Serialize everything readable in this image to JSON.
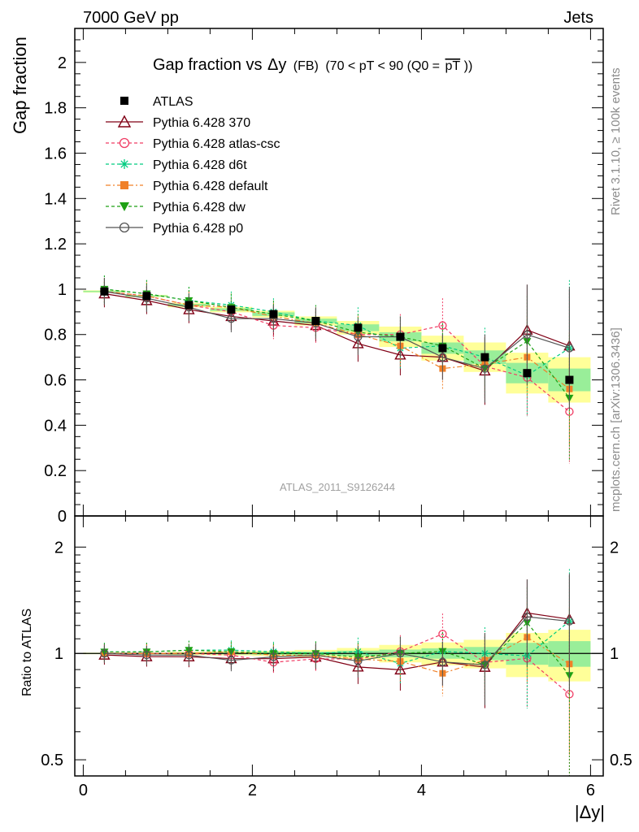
{
  "header": {
    "left": "7000 GeV pp",
    "right": "Jets"
  },
  "side_labels": {
    "rivet": "Rivet 3.1.10, ≥ 100k events",
    "mcplots": "mcplots.cern.ch [arXiv:1306.3436]"
  },
  "watermark": "ATLAS_2011_S9126244",
  "chart_data": {
    "type": "scatter",
    "title": {
      "main": "Gap fraction vs",
      "delta": "Δy",
      "fb": "(FB)",
      "range_pre": "(70 < pT <  90 (Q0 =",
      "range_pt": "pT",
      "range_post": "))"
    },
    "ylabel": "Gap fraction",
    "ratio_ylabel": "Ratio to ATLAS",
    "xlabel": "|Δy|",
    "xlim": [
      -0.1,
      6.15
    ],
    "ylim": [
      0,
      2.15
    ],
    "ratio_ylim": [
      0.45,
      2.45
    ],
    "ratio_log_scale": true,
    "x_ticks": [
      "0",
      "2",
      "4",
      "6"
    ],
    "y_ticks": [
      "0",
      "0.2",
      "0.4",
      "0.6",
      "0.8",
      "1",
      "1.2",
      "1.4",
      "1.6",
      "1.8",
      "2"
    ],
    "ratio_ticks": [
      "0.5",
      "1",
      "2"
    ],
    "x": [
      0.25,
      0.75,
      1.25,
      1.75,
      2.25,
      2.75,
      3.25,
      3.75,
      4.25,
      4.75,
      5.25,
      5.75
    ],
    "data_series": {
      "name": "ATLAS",
      "color": "#000000",
      "values": [
        0.99,
        0.97,
        0.93,
        0.91,
        0.89,
        0.86,
        0.83,
        0.79,
        0.74,
        0.7,
        0.63,
        0.6
      ],
      "band_total": [
        0.005,
        0.005,
        0.01,
        0.012,
        0.015,
        0.02,
        0.03,
        0.045,
        0.055,
        0.065,
        0.09,
        0.1
      ],
      "band_stat": [
        0.003,
        0.003,
        0.005,
        0.006,
        0.008,
        0.01,
        0.015,
        0.02,
        0.025,
        0.03,
        0.045,
        0.05
      ]
    },
    "series": [
      {
        "name": "Pythia 6.428 370",
        "color": "#800015",
        "marker": "triangle-open",
        "dash": "",
        "values": [
          0.98,
          0.95,
          0.91,
          0.88,
          0.86,
          0.84,
          0.76,
          0.71,
          0.7,
          0.64,
          0.82,
          0.75
        ],
        "err": [
          0.06,
          0.06,
          0.06,
          0.06,
          0.07,
          0.07,
          0.08,
          0.09,
          0.1,
          0.15,
          0.2,
          0.25
        ]
      },
      {
        "name": "Pythia 6.428 atlas-csc",
        "color": "#f03c64",
        "marker": "circle-open",
        "dash": "4,3",
        "values": [
          0.99,
          0.97,
          0.93,
          0.9,
          0.84,
          0.83,
          0.8,
          0.8,
          0.84,
          0.66,
          0.61,
          0.46
        ],
        "err": [
          0.06,
          0.06,
          0.06,
          0.06,
          0.06,
          0.07,
          0.08,
          0.09,
          0.12,
          0.14,
          0.17,
          0.23
        ]
      },
      {
        "name": "Pythia 6.428 d6t",
        "color": "#00cc80",
        "marker": "star",
        "dash": "4,3",
        "values": [
          1.0,
          0.98,
          0.95,
          0.93,
          0.9,
          0.86,
          0.84,
          0.74,
          0.75,
          0.7,
          0.62,
          0.74
        ],
        "err": [
          0.06,
          0.06,
          0.06,
          0.06,
          0.06,
          0.07,
          0.08,
          0.09,
          0.1,
          0.13,
          0.18,
          0.3
        ]
      },
      {
        "name": "Pythia 6.428 default",
        "color": "#f08028",
        "marker": "square",
        "dash": "6,3,2,3",
        "values": [
          0.99,
          0.97,
          0.93,
          0.92,
          0.88,
          0.85,
          0.8,
          0.75,
          0.65,
          0.67,
          0.7,
          0.56
        ],
        "err": [
          0.06,
          0.06,
          0.06,
          0.06,
          0.06,
          0.07,
          0.08,
          0.09,
          0.09,
          0.12,
          0.18,
          0.25
        ]
      },
      {
        "name": "Pythia 6.428 dw",
        "color": "#1ea014",
        "marker": "triangle-down",
        "dash": "4,3",
        "values": [
          1.0,
          0.98,
          0.95,
          0.92,
          0.89,
          0.86,
          0.81,
          0.79,
          0.75,
          0.65,
          0.77,
          0.52
        ],
        "err": [
          0.06,
          0.06,
          0.06,
          0.06,
          0.06,
          0.07,
          0.08,
          0.09,
          0.1,
          0.13,
          0.2,
          0.28
        ]
      },
      {
        "name": "Pythia 6.428 p0",
        "color": "#555555",
        "marker": "circle-open",
        "dash": "",
        "values": [
          0.99,
          0.96,
          0.92,
          0.87,
          0.87,
          0.85,
          0.79,
          0.79,
          0.7,
          0.65,
          0.8,
          0.74
        ],
        "err": [
          0.06,
          0.06,
          0.06,
          0.06,
          0.06,
          0.07,
          0.08,
          0.09,
          0.1,
          0.15,
          0.22,
          0.27
        ]
      }
    ],
    "legend": {
      "placement": "top-left",
      "entries": [
        "ATLAS",
        "Pythia 6.428 370",
        "Pythia 6.428 atlas-csc",
        "Pythia 6.428 d6t",
        "Pythia 6.428 default",
        "Pythia 6.428 dw",
        "Pythia 6.428 p0"
      ]
    }
  }
}
